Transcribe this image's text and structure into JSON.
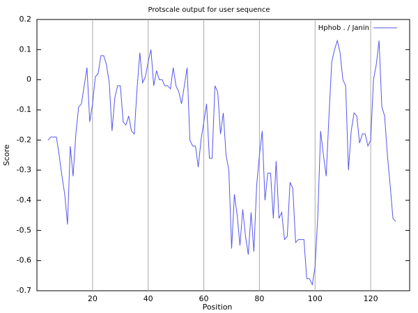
{
  "chart_data": {
    "type": "line",
    "title": "Protscale output for user sequence",
    "x_label": "Position",
    "y_label": "Score",
    "xlim": [
      0,
      134
    ],
    "ylim": [
      -0.7,
      0.2
    ],
    "xticks": [
      20,
      40,
      60,
      80,
      100,
      120
    ],
    "yticks": [
      0.2,
      0.1,
      0,
      -0.1,
      -0.2,
      -0.3,
      -0.4,
      -0.5,
      -0.6,
      -0.7
    ],
    "grid": "x",
    "legend": "upper right",
    "x": [
      4,
      5,
      6,
      7,
      8,
      9,
      10,
      11,
      12,
      13,
      14,
      15,
      16,
      17,
      18,
      19,
      20,
      21,
      22,
      23,
      24,
      25,
      26,
      27,
      28,
      29,
      30,
      31,
      32,
      33,
      34,
      35,
      36,
      37,
      38,
      39,
      40,
      41,
      42,
      43,
      44,
      45,
      46,
      47,
      48,
      49,
      50,
      51,
      52,
      53,
      54,
      55,
      56,
      57,
      58,
      59,
      60,
      61,
      62,
      63,
      64,
      65,
      66,
      67,
      68,
      69,
      70,
      71,
      72,
      73,
      74,
      75,
      76,
      77,
      78,
      79,
      80,
      81,
      82,
      83,
      84,
      85,
      86,
      87,
      88,
      89,
      90,
      91,
      92,
      93,
      94,
      95,
      96,
      97,
      98,
      99,
      100,
      101,
      102,
      103,
      104,
      105,
      106,
      107,
      108,
      109,
      110,
      111,
      112,
      113,
      114,
      115,
      116,
      117,
      118,
      119,
      120,
      121,
      122,
      123,
      124,
      125,
      126,
      127,
      128,
      129
    ],
    "series": [
      {
        "name": "Hphob . / Janin",
        "color": "#5555ee",
        "values": [
          -0.2,
          -0.19,
          -0.19,
          -0.19,
          -0.25,
          -0.32,
          -0.38,
          -0.48,
          -0.22,
          -0.32,
          -0.18,
          -0.09,
          -0.08,
          -0.02,
          0.04,
          -0.14,
          -0.08,
          0.01,
          0.02,
          0.08,
          0.08,
          0.05,
          -0.01,
          -0.17,
          -0.06,
          -0.02,
          -0.02,
          -0.14,
          -0.15,
          -0.12,
          -0.17,
          -0.18,
          -0.03,
          0.09,
          -0.01,
          0.01,
          0.06,
          0.1,
          -0.02,
          0.03,
          0.0,
          0.0,
          -0.02,
          -0.02,
          -0.03,
          0.04,
          -0.02,
          -0.04,
          -0.08,
          -0.02,
          0.04,
          -0.2,
          -0.22,
          -0.22,
          -0.29,
          -0.2,
          -0.14,
          -0.08,
          -0.26,
          -0.26,
          -0.02,
          -0.04,
          -0.18,
          -0.11,
          -0.25,
          -0.3,
          -0.56,
          -0.38,
          -0.45,
          -0.55,
          -0.43,
          -0.52,
          -0.58,
          -0.44,
          -0.57,
          -0.35,
          -0.25,
          -0.17,
          -0.4,
          -0.31,
          -0.31,
          -0.46,
          -0.27,
          -0.46,
          -0.44,
          -0.53,
          -0.52,
          -0.34,
          -0.36,
          -0.54,
          -0.53,
          -0.53,
          -0.53,
          -0.66,
          -0.66,
          -0.68,
          -0.62,
          -0.45,
          -0.17,
          -0.25,
          -0.32,
          -0.12,
          0.06,
          0.1,
          0.13,
          0.09,
          0.0,
          -0.02,
          -0.3,
          -0.17,
          -0.11,
          -0.12,
          -0.21,
          -0.18,
          -0.18,
          -0.22,
          -0.2,
          0.0,
          0.05,
          0.13,
          -0.09,
          -0.12,
          -0.25,
          -0.35,
          -0.46,
          -0.47
        ]
      }
    ]
  }
}
